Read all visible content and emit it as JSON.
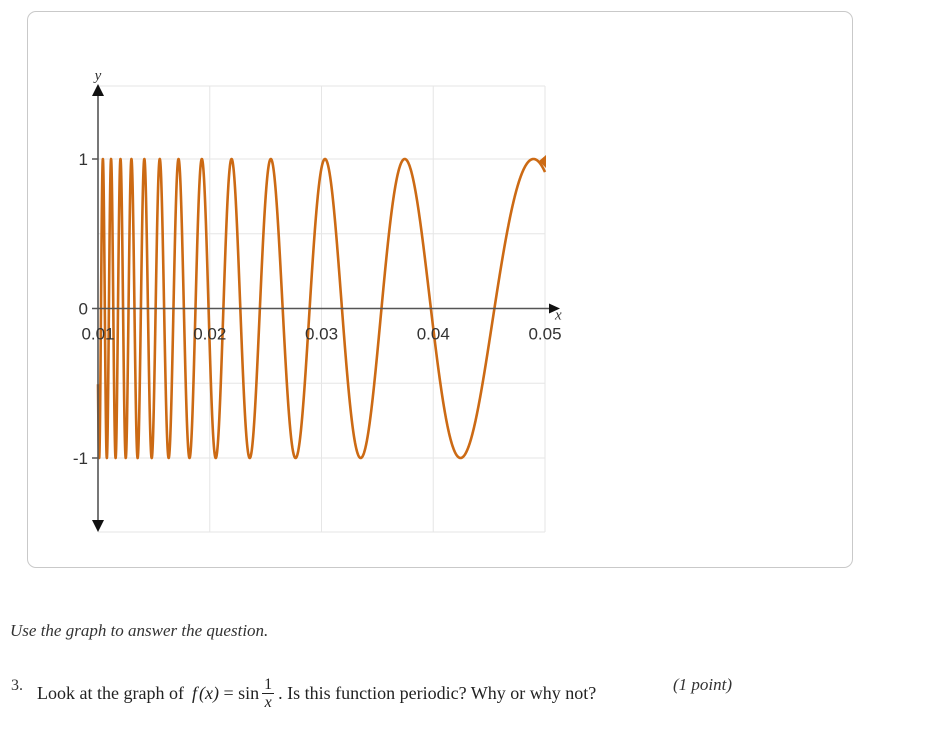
{
  "chart_data": {
    "type": "line",
    "function": "sin(1/x)",
    "xlabel": "x",
    "ylabel": "y",
    "xlim": [
      0.01,
      0.05
    ],
    "ylim": [
      -1.5,
      1.5
    ],
    "x_ticks": [
      0.01,
      0.02,
      0.03,
      0.04,
      0.05
    ],
    "x_tick_labels": [
      "0.01",
      "0.02",
      "0.03",
      "0.04",
      "0.05"
    ],
    "y_ticks": [
      -1,
      0,
      1
    ],
    "y_tick_labels": [
      "-1",
      "0",
      "1"
    ],
    "grid": true,
    "series": [
      {
        "color": "#cc6a14",
        "x_range": [
          0.01,
          0.05
        ]
      }
    ]
  },
  "instruction": "Use the graph to answer the question.",
  "question": {
    "number": "3.",
    "prefix": "Look at the graph of",
    "fn_name": "f",
    "fn_arg": "(x)",
    "equals": " = sin",
    "frac_num": "1",
    "frac_den": "x",
    "suffix": ". Is this function periodic? Why or why not?",
    "points": "(1 point)"
  }
}
